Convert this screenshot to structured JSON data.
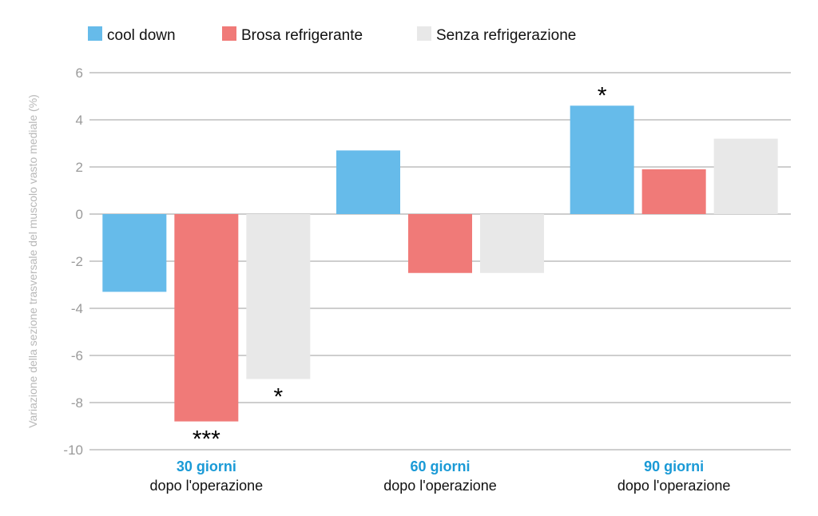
{
  "chart_data": {
    "type": "bar",
    "title": "",
    "xlabel": "",
    "ylabel": "Variazione della sezione trasversale del muscolo vasto mediale (%)",
    "ylim": [
      -10,
      6
    ],
    "yticks": [
      6,
      4,
      2,
      0,
      -2,
      -4,
      -6,
      -8,
      -10
    ],
    "grid": true,
    "legend_position": "top",
    "categories": [
      {
        "line1": "30 giorni",
        "line2": "dopo l'operazione"
      },
      {
        "line1": "60 giorni",
        "line2": "dopo l'operazione"
      },
      {
        "line1": "90 giorni",
        "line2": "dopo l'operazione"
      }
    ],
    "series": [
      {
        "name": "cool down",
        "color": "#66bbea",
        "values": [
          -3.3,
          2.7,
          4.6
        ]
      },
      {
        "name": "Brosa refrigerante",
        "color": "#f07a78",
        "values": [
          -8.8,
          -2.5,
          1.9
        ]
      },
      {
        "name": "Senza refrigerazione",
        "color": "#e8e8e8",
        "values": [
          -7.0,
          -2.5,
          3.2
        ]
      }
    ],
    "annotations": [
      {
        "category": 0,
        "series": 1,
        "text": "***"
      },
      {
        "category": 0,
        "series": 2,
        "text": "*"
      },
      {
        "category": 2,
        "series": 0,
        "text": "*"
      }
    ]
  }
}
